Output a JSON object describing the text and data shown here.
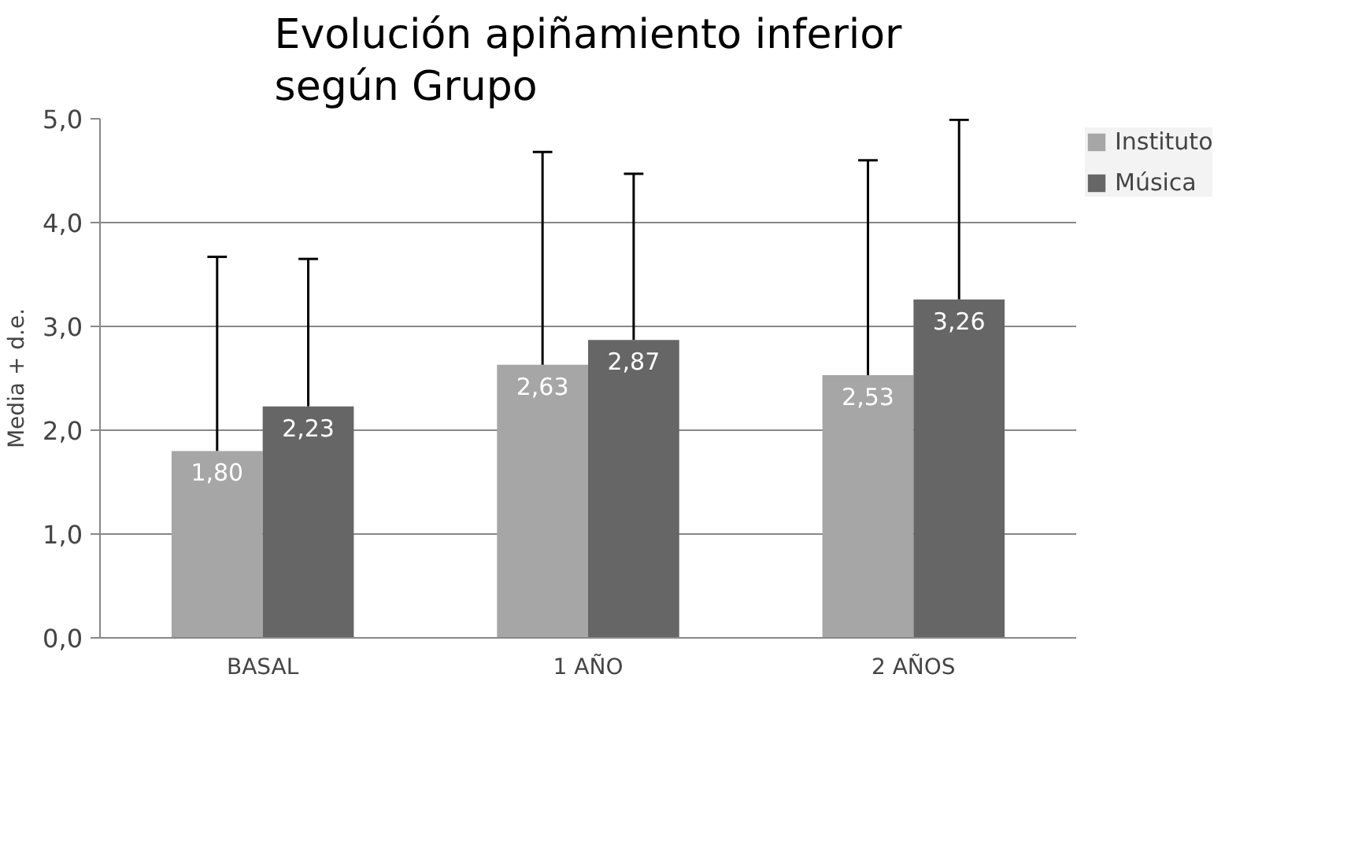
{
  "chart_data": {
    "type": "bar",
    "title": "Evolución apiñamiento inferior\nsegún Grupo",
    "ylabel": "Media + d.e.",
    "categories": [
      "BASAL",
      "1 AÑO",
      "2 AÑOS"
    ],
    "series": [
      {
        "name": "Instituto",
        "color": "#a6a6a6",
        "values": [
          1.8,
          2.63,
          2.53
        ],
        "value_labels": [
          "1,80",
          "2,63",
          "2,53"
        ],
        "errors": [
          [
            1.8,
            3.67
          ],
          [
            2.63,
            4.68
          ],
          [
            2.53,
            4.6
          ]
        ]
      },
      {
        "name": "Música",
        "color": "#666666",
        "values": [
          2.23,
          2.87,
          3.26
        ],
        "value_labels": [
          "2,23",
          "2,87",
          "3,26"
        ],
        "errors": [
          [
            2.23,
            3.65
          ],
          [
            2.87,
            4.47
          ],
          [
            3.26,
            4.99
          ]
        ]
      }
    ],
    "ylim": [
      0,
      5
    ],
    "yticks": [
      {
        "value": 0,
        "label": "0,0"
      },
      {
        "value": 1,
        "label": "1,0"
      },
      {
        "value": 2,
        "label": "2,0"
      },
      {
        "value": 3,
        "label": "3,0"
      },
      {
        "value": 4,
        "label": "4,0"
      },
      {
        "value": 5,
        "label": "5,0"
      }
    ],
    "grid": "y",
    "legend": "top right"
  }
}
